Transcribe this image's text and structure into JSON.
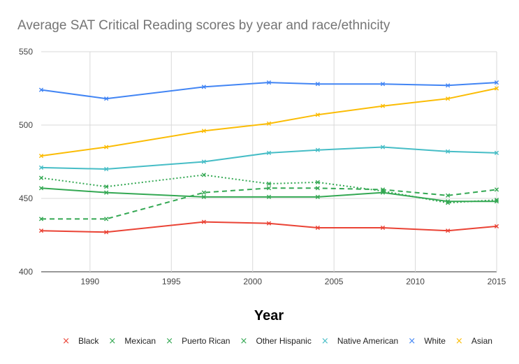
{
  "chart_data": {
    "type": "line",
    "title": "Average SAT Critical Reading scores by year and race/ethnicity",
    "xlabel": "Year",
    "ylabel": "",
    "xlim": [
      1987,
      2015
    ],
    "ylim": [
      400,
      550
    ],
    "x_ticks": [
      1990,
      1995,
      2000,
      2005,
      2010,
      2015
    ],
    "y_ticks": [
      400,
      450,
      500,
      550
    ],
    "x": [
      1987,
      1991,
      1997,
      2001,
      2004,
      2008,
      2012,
      2015
    ],
    "legend_position": "bottom",
    "series": [
      {
        "name": "Black",
        "color": "#ea4335",
        "dash": "solid",
        "values": [
          428,
          427,
          434,
          433,
          430,
          430,
          428,
          431
        ]
      },
      {
        "name": "Mexican",
        "color": "#34a853",
        "dash": "solid",
        "values": [
          457,
          454,
          451,
          451,
          451,
          454,
          448,
          448
        ]
      },
      {
        "name": "Puerto Rican",
        "color": "#34a853",
        "dash": "dashed",
        "values": [
          436,
          436,
          454,
          457,
          457,
          456,
          452,
          456
        ]
      },
      {
        "name": "Other Hispanic",
        "color": "#34a853",
        "dash": "dotted",
        "values": [
          464,
          458,
          466,
          460,
          461,
          455,
          447,
          449
        ]
      },
      {
        "name": "Native American",
        "color": "#46bdc6",
        "dash": "solid",
        "values": [
          471,
          470,
          475,
          481,
          483,
          485,
          482,
          481
        ]
      },
      {
        "name": "White",
        "color": "#4285f4",
        "dash": "solid",
        "values": [
          524,
          518,
          526,
          529,
          528,
          528,
          527,
          529
        ]
      },
      {
        "name": "Asian",
        "color": "#fbbc04",
        "dash": "solid",
        "values": [
          479,
          485,
          496,
          501,
          507,
          513,
          518,
          525
        ]
      }
    ]
  }
}
